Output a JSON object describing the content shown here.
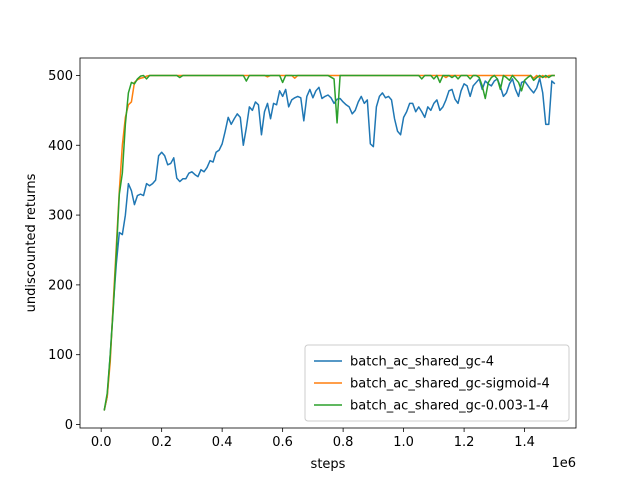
{
  "chart_data": {
    "type": "line",
    "xlabel": "steps",
    "ylabel": "undiscounted returns",
    "x_offset_label": "1e6",
    "xlim": [
      -0.07,
      1.57
    ],
    "ylim": [
      -5,
      525
    ],
    "x_ticks": [
      0.0,
      0.2,
      0.4,
      0.6,
      0.8,
      1.0,
      1.2,
      1.4
    ],
    "x_tick_labels": [
      "0.0",
      "0.2",
      "0.4",
      "0.6",
      "0.8",
      "1.0",
      "1.2",
      "1.4"
    ],
    "y_ticks": [
      0,
      100,
      200,
      300,
      400,
      500
    ],
    "y_tick_labels": [
      "0",
      "100",
      "200",
      "300",
      "400",
      "500"
    ],
    "grid": false,
    "legend_position": "lower-right",
    "series": [
      {
        "name": "batch_ac_shared_gc-4",
        "color": "#1f77b4",
        "x": [
          0.01,
          0.02,
          0.03,
          0.04,
          0.05,
          0.06,
          0.07,
          0.08,
          0.09,
          0.1,
          0.11,
          0.12,
          0.13,
          0.14,
          0.15,
          0.16,
          0.17,
          0.18,
          0.19,
          0.2,
          0.21,
          0.22,
          0.23,
          0.24,
          0.25,
          0.26,
          0.27,
          0.28,
          0.29,
          0.3,
          0.31,
          0.32,
          0.33,
          0.34,
          0.35,
          0.36,
          0.37,
          0.38,
          0.39,
          0.4,
          0.41,
          0.42,
          0.43,
          0.44,
          0.45,
          0.46,
          0.47,
          0.48,
          0.49,
          0.5,
          0.51,
          0.52,
          0.53,
          0.54,
          0.55,
          0.56,
          0.57,
          0.58,
          0.59,
          0.6,
          0.61,
          0.62,
          0.63,
          0.64,
          0.65,
          0.66,
          0.67,
          0.68,
          0.69,
          0.7,
          0.71,
          0.72,
          0.73,
          0.74,
          0.75,
          0.76,
          0.77,
          0.78,
          0.79,
          0.8,
          0.81,
          0.82,
          0.83,
          0.84,
          0.85,
          0.86,
          0.87,
          0.88,
          0.89,
          0.9,
          0.91,
          0.92,
          0.93,
          0.94,
          0.95,
          0.96,
          0.97,
          0.98,
          0.99,
          1.0,
          1.01,
          1.02,
          1.03,
          1.04,
          1.05,
          1.06,
          1.07,
          1.08,
          1.09,
          1.1,
          1.11,
          1.12,
          1.13,
          1.14,
          1.15,
          1.16,
          1.17,
          1.18,
          1.19,
          1.2,
          1.21,
          1.22,
          1.23,
          1.24,
          1.25,
          1.26,
          1.27,
          1.28,
          1.29,
          1.3,
          1.31,
          1.32,
          1.33,
          1.34,
          1.35,
          1.36,
          1.37,
          1.38,
          1.39,
          1.4,
          1.41,
          1.42,
          1.43,
          1.44,
          1.45,
          1.46,
          1.47,
          1.48,
          1.49,
          1.5
        ],
        "y": [
          20,
          40,
          100,
          170,
          230,
          275,
          272,
          300,
          345,
          335,
          315,
          328,
          330,
          328,
          345,
          342,
          345,
          350,
          385,
          390,
          385,
          372,
          374,
          382,
          353,
          348,
          352,
          352,
          360,
          362,
          358,
          355,
          365,
          362,
          368,
          378,
          376,
          390,
          393,
          402,
          420,
          440,
          430,
          438,
          445,
          440,
          400,
          425,
          455,
          450,
          462,
          458,
          415,
          448,
          460,
          438,
          460,
          458,
          478,
          470,
          480,
          455,
          465,
          468,
          470,
          468,
          435,
          470,
          480,
          468,
          478,
          483,
          467,
          470,
          472,
          468,
          460,
          466,
          467,
          462,
          458,
          455,
          445,
          450,
          462,
          470,
          460,
          465,
          402,
          398,
          455,
          470,
          475,
          468,
          470,
          465,
          438,
          420,
          415,
          440,
          448,
          460,
          460,
          448,
          455,
          448,
          440,
          455,
          450,
          460,
          465,
          450,
          455,
          465,
          478,
          480,
          466,
          460,
          478,
          488,
          485,
          470,
          485,
          490,
          495,
          480,
          492,
          488,
          485,
          492,
          495,
          484,
          470,
          475,
          488,
          495,
          480,
          470,
          490,
          492,
          486,
          480,
          475,
          482,
          496,
          475,
          430,
          430,
          492,
          488
        ]
      },
      {
        "name": "batch_ac_shared_gc-sigmoid-4",
        "color": "#ff7f0e",
        "x": [
          0.01,
          0.02,
          0.03,
          0.04,
          0.05,
          0.06,
          0.07,
          0.08,
          0.09,
          0.1,
          0.11,
          0.12,
          0.13,
          0.14,
          0.15,
          0.16,
          0.2,
          0.25,
          0.3,
          0.35,
          0.4,
          0.45,
          0.5,
          0.52,
          0.54,
          0.55,
          0.56,
          0.57,
          0.58,
          0.6,
          0.63,
          0.64,
          0.65,
          0.7,
          0.75,
          0.8,
          0.85,
          0.9,
          0.95,
          1.0,
          1.05,
          1.1,
          1.13,
          1.14,
          1.15,
          1.2,
          1.25,
          1.3,
          1.35,
          1.4,
          1.42,
          1.43,
          1.44,
          1.45,
          1.46,
          1.47,
          1.48,
          1.5
        ],
        "y": [
          20,
          40,
          90,
          175,
          255,
          335,
          400,
          440,
          458,
          462,
          490,
          494,
          496,
          497,
          499,
          500,
          500,
          500,
          500,
          500,
          500,
          500,
          500,
          500,
          500,
          498,
          500,
          500,
          500,
          500,
          500,
          496,
          500,
          500,
          500,
          500,
          500,
          500,
          500,
          500,
          500,
          500,
          500,
          497,
          500,
          500,
          500,
          500,
          500,
          500,
          500,
          496,
          500,
          497,
          500,
          497,
          500,
          500
        ]
      },
      {
        "name": "batch_ac_shared_gc-0.003-1-4",
        "color": "#2ca02c",
        "x": [
          0.01,
          0.02,
          0.03,
          0.04,
          0.05,
          0.06,
          0.07,
          0.08,
          0.09,
          0.1,
          0.11,
          0.12,
          0.13,
          0.14,
          0.15,
          0.16,
          0.17,
          0.2,
          0.25,
          0.26,
          0.27,
          0.3,
          0.35,
          0.4,
          0.45,
          0.47,
          0.48,
          0.49,
          0.5,
          0.55,
          0.59,
          0.6,
          0.61,
          0.65,
          0.7,
          0.75,
          0.77,
          0.78,
          0.79,
          0.8,
          0.85,
          0.9,
          0.95,
          1.0,
          1.05,
          1.06,
          1.07,
          1.08,
          1.09,
          1.1,
          1.11,
          1.12,
          1.13,
          1.14,
          1.15,
          1.16,
          1.17,
          1.18,
          1.19,
          1.2,
          1.21,
          1.22,
          1.23,
          1.24,
          1.25,
          1.26,
          1.27,
          1.28,
          1.29,
          1.3,
          1.31,
          1.32,
          1.33,
          1.34,
          1.35,
          1.36,
          1.37,
          1.38,
          1.39,
          1.4,
          1.41,
          1.42,
          1.43,
          1.44,
          1.45,
          1.46,
          1.47,
          1.48,
          1.49,
          1.5
        ],
        "y": [
          20,
          45,
          100,
          165,
          245,
          330,
          360,
          430,
          475,
          490,
          488,
          495,
          499,
          500,
          495,
          500,
          500,
          500,
          500,
          497,
          500,
          500,
          500,
          500,
          500,
          500,
          492,
          500,
          500,
          500,
          500,
          490,
          500,
          500,
          500,
          500,
          495,
          432,
          500,
          500,
          500,
          500,
          500,
          500,
          500,
          495,
          500,
          500,
          500,
          495,
          500,
          490,
          500,
          500,
          500,
          497,
          500,
          495,
          500,
          500,
          500,
          495,
          500,
          500,
          497,
          485,
          467,
          490,
          497,
          500,
          495,
          480,
          500,
          497,
          493,
          500,
          495,
          490,
          478,
          493,
          497,
          500,
          493,
          497,
          500,
          497,
          500,
          497,
          500,
          500
        ]
      }
    ]
  }
}
